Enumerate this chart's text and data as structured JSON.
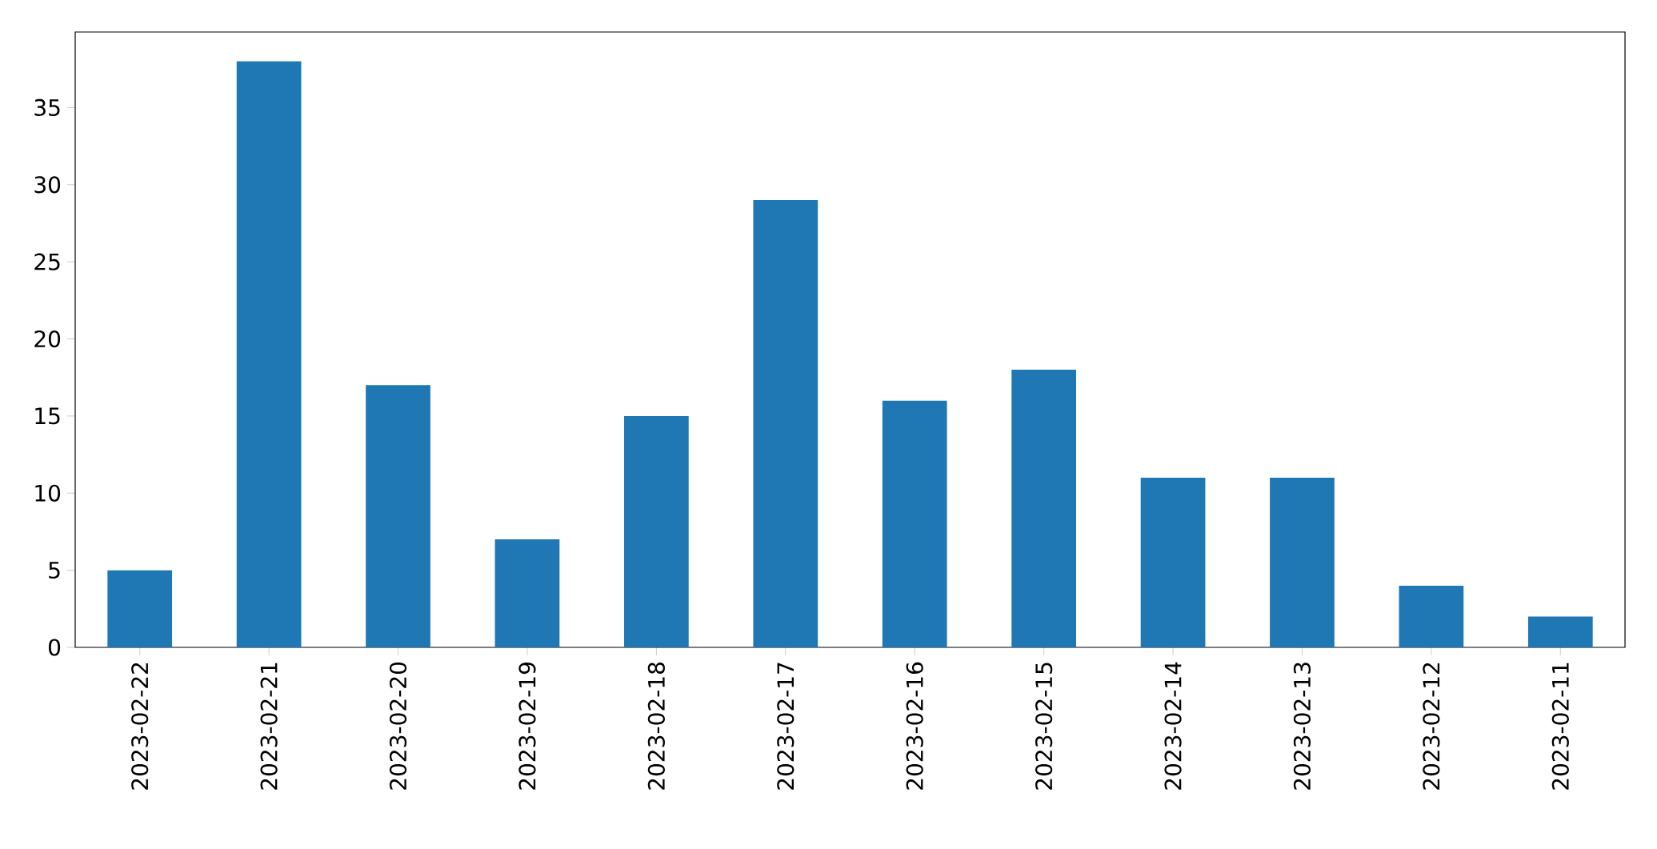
{
  "chart_data": {
    "type": "bar",
    "categories": [
      "2023-02-22",
      "2023-02-21",
      "2023-02-20",
      "2023-02-19",
      "2023-02-18",
      "2023-02-17",
      "2023-02-16",
      "2023-02-15",
      "2023-02-14",
      "2023-02-13",
      "2023-02-12",
      "2023-02-11"
    ],
    "values": [
      5,
      38,
      17,
      7,
      15,
      29,
      16,
      18,
      11,
      11,
      4,
      2
    ],
    "color": "#1f77b4",
    "ylim": [
      0,
      39.9
    ],
    "yticks": [
      0,
      5,
      10,
      15,
      20,
      25,
      30,
      35
    ]
  }
}
